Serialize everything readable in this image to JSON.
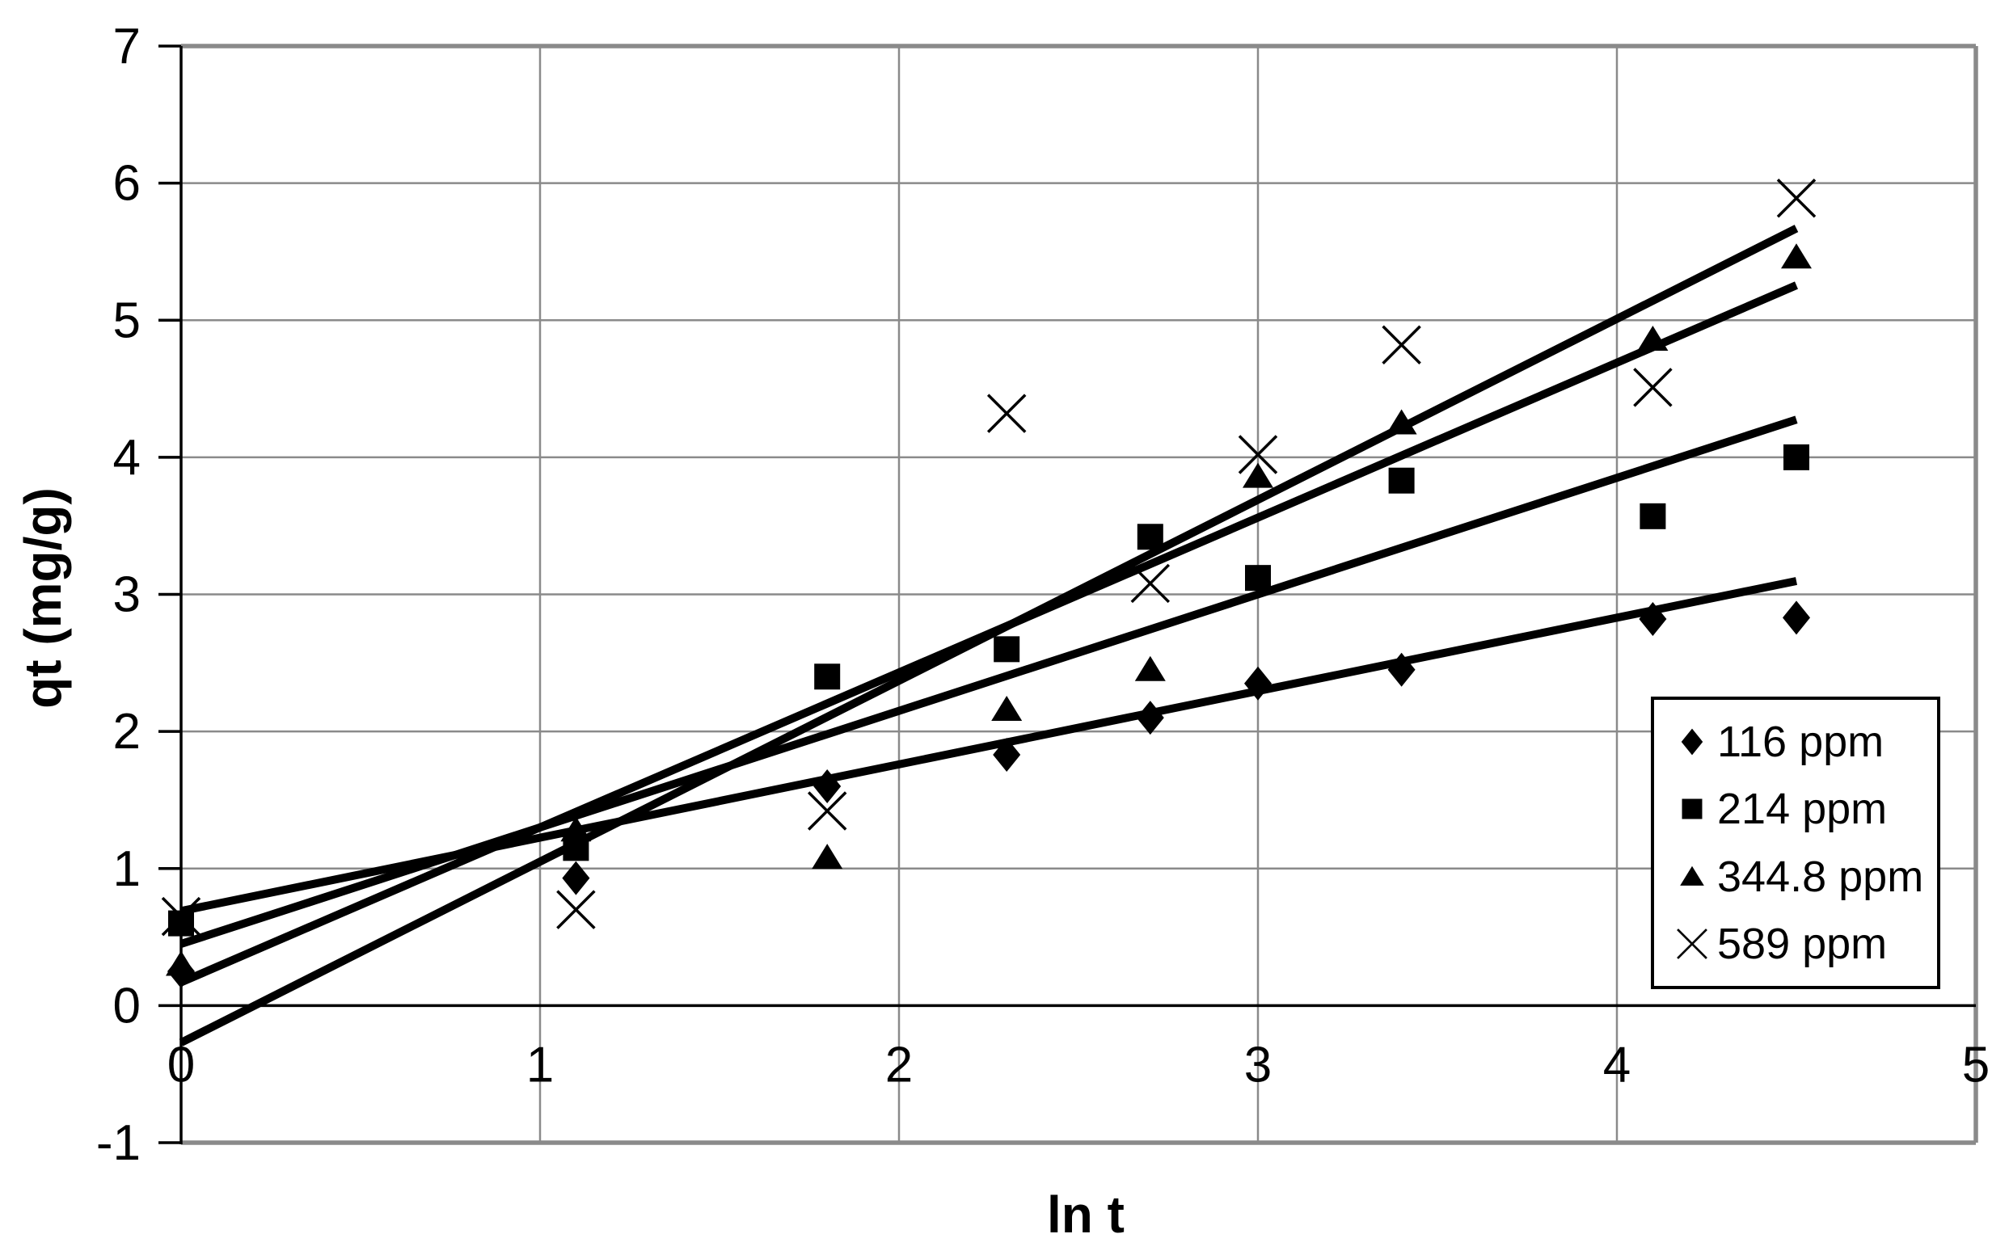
{
  "style": {
    "background": "#ffffff",
    "grid_color": "#8a8a8a",
    "border_color": "#8a8a8a",
    "axis_color": "#000000",
    "marker_color": "#000000",
    "trendline_color": "#000000",
    "text_color": "#000000",
    "legend_border_color": "#000000"
  },
  "chart_data": {
    "type": "scatter",
    "title": "",
    "xlabel": "ln t",
    "ylabel": "qt (mg/g)",
    "xlim": [
      0,
      5
    ],
    "ylim": [
      -1,
      7
    ],
    "x_ticks": [
      0,
      1,
      2,
      3,
      4,
      5
    ],
    "y_ticks": [
      -1,
      0,
      1,
      2,
      3,
      4,
      5,
      6,
      7
    ],
    "grid": true,
    "legend_position": "middle-right",
    "x": [
      0,
      1.1,
      1.8,
      2.3,
      2.7,
      3.0,
      3.4,
      4.1,
      4.5
    ],
    "series": [
      {
        "name": "116 ppm",
        "marker": "diamond",
        "values": [
          0.25,
          0.93,
          1.6,
          1.83,
          2.1,
          2.35,
          2.45,
          2.82,
          2.83
        ]
      },
      {
        "name": "214 ppm",
        "marker": "square",
        "values": [
          0.6,
          1.15,
          2.4,
          2.6,
          3.42,
          3.12,
          3.83,
          3.57,
          4.0
        ]
      },
      {
        "name": "344.8 ppm",
        "marker": "triangle",
        "values": [
          0.3,
          1.28,
          1.08,
          2.16,
          2.45,
          3.86,
          4.25,
          4.86,
          5.46
        ]
      },
      {
        "name": "589 ppm",
        "marker": "x",
        "values": [
          0.65,
          0.7,
          1.42,
          4.32,
          3.08,
          4.02,
          4.82,
          4.51,
          5.89
        ]
      }
    ],
    "trendlines": [
      {
        "series": "116 ppm",
        "slope": 0.535,
        "intercept": 0.69,
        "x_start": 0,
        "x_end": 4.5
      },
      {
        "series": "214 ppm",
        "slope": 0.85,
        "intercept": 0.45,
        "x_start": 0,
        "x_end": 4.5
      },
      {
        "series": "344.8 ppm",
        "slope": 1.13,
        "intercept": 0.17,
        "x_start": 0,
        "x_end": 4.5
      },
      {
        "series": "589 ppm",
        "slope": 1.32,
        "intercept": -0.27,
        "x_start": 0,
        "x_end": 4.5
      }
    ]
  }
}
